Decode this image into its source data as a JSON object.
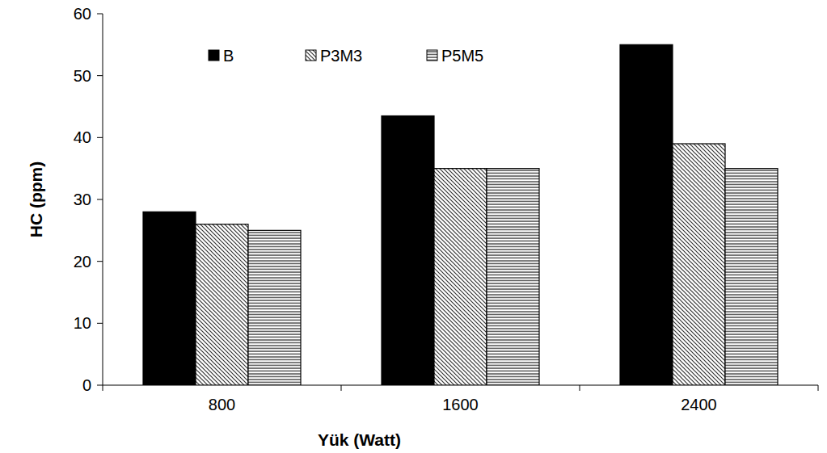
{
  "chart_data": {
    "type": "bar",
    "x_label": "Yük (Watt)",
    "y_label": "HC (ppm)",
    "categories": [
      "800",
      "1600",
      "2400"
    ],
    "series": [
      {
        "name": "B",
        "color": "#000000",
        "values": [
          28,
          43.5,
          55
        ]
      },
      {
        "name": "P3M3",
        "color": "#333333",
        "values": [
          26,
          35,
          39
        ]
      },
      {
        "name": "P5M5",
        "color": "#444444",
        "values": [
          25,
          35,
          35
        ]
      }
    ],
    "ylim": [
      0,
      60
    ],
    "yticks": [
      0,
      10,
      20,
      30,
      40,
      50,
      60
    ],
    "grid": false,
    "legend": "top"
  }
}
